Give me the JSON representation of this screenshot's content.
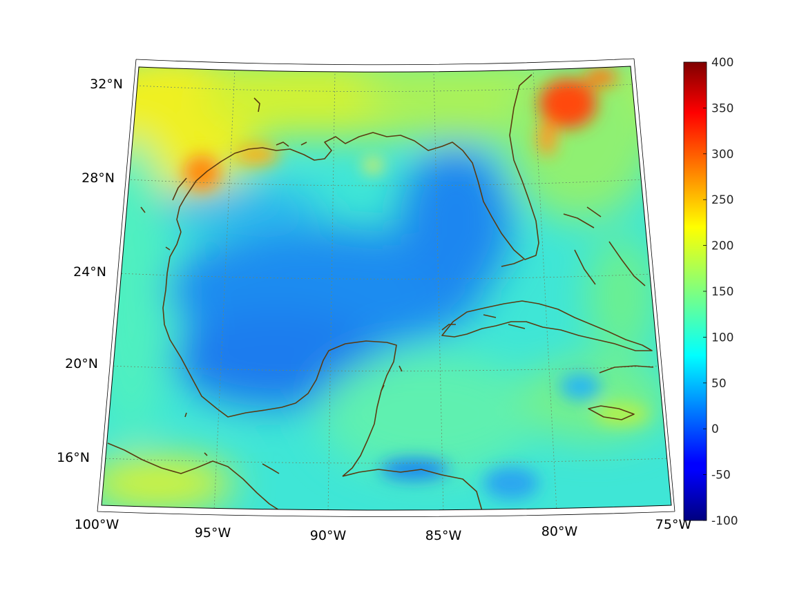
{
  "map": {
    "projection": "lambert-conic",
    "lon_range": [
      -100,
      -75
    ],
    "lat_range": [
      14,
      33
    ],
    "lon_ticks": [
      {
        "value": -100,
        "label": "100°W"
      },
      {
        "value": -95,
        "label": "95°W"
      },
      {
        "value": -90,
        "label": "90°W"
      },
      {
        "value": -85,
        "label": "85°W"
      },
      {
        "value": -80,
        "label": "80°W"
      },
      {
        "value": -75,
        "label": "75°W"
      }
    ],
    "lat_ticks": [
      {
        "value": 32,
        "label": "32°N"
      },
      {
        "value": 28,
        "label": "28°N"
      },
      {
        "value": 24,
        "label": "24°N"
      },
      {
        "value": 20,
        "label": "20°N"
      },
      {
        "value": 16,
        "label": "16°N"
      }
    ],
    "grid": true,
    "coastline_color": "#5a3a10",
    "field_description_colors": {
      "background_value_color": "#3fe8d8"
    }
  },
  "colorbar": {
    "colormap": "jet",
    "range": [
      -100,
      400
    ],
    "ticks": [
      "400",
      "350",
      "300",
      "250",
      "200",
      "150",
      "100",
      "50",
      "0",
      "-50",
      "-100"
    ]
  }
}
